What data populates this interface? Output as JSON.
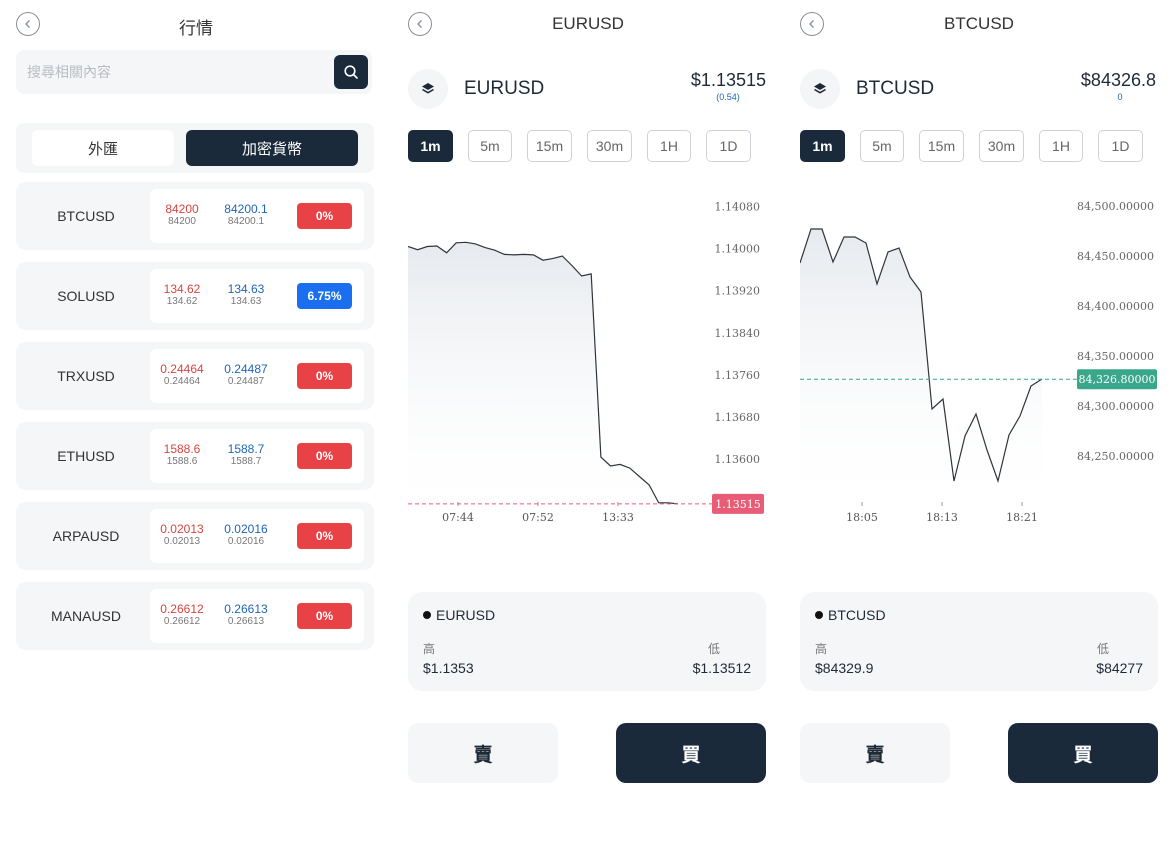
{
  "list": {
    "title": "行情",
    "search_placeholder": "搜尋相關內容",
    "tabs": [
      "外匯",
      "加密貨幣"
    ],
    "rows": [
      {
        "symbol": "BTCUSD",
        "bid": "84200",
        "bid_sub": "84200",
        "ask": "84200.1",
        "ask_sub": "84200.1",
        "change": "0%",
        "dir": "down"
      },
      {
        "symbol": "SOLUSD",
        "bid": "134.62",
        "bid_sub": "134.62",
        "ask": "134.63",
        "ask_sub": "134.63",
        "change": "6.75%",
        "dir": "up"
      },
      {
        "symbol": "TRXUSD",
        "bid": "0.24464",
        "bid_sub": "0.24464",
        "ask": "0.24487",
        "ask_sub": "0.24487",
        "change": "0%",
        "dir": "down"
      },
      {
        "symbol": "ETHUSD",
        "bid": "1588.6",
        "bid_sub": "1588.6",
        "ask": "1588.7",
        "ask_sub": "1588.7",
        "change": "0%",
        "dir": "down"
      },
      {
        "symbol": "ARPAUSD",
        "bid": "0.02013",
        "bid_sub": "0.02013",
        "ask": "0.02016",
        "ask_sub": "0.02016",
        "change": "0%",
        "dir": "down"
      },
      {
        "symbol": "MANAUSD",
        "bid": "0.26612",
        "bid_sub": "0.26612",
        "ask": "0.26613",
        "ask_sub": "0.26613",
        "change": "0%",
        "dir": "down"
      }
    ]
  },
  "timeframes": [
    "1m",
    "5m",
    "15m",
    "30m",
    "1H",
    "1D"
  ],
  "eur": {
    "title": "EURUSD",
    "symbol": "EURUSD",
    "price": "$1.13515",
    "change": "(0.54)",
    "active_tf": "1m",
    "info_name": "EURUSD",
    "high_label": "高",
    "high_value": "$1.1353",
    "low_label": "低",
    "low_value": "$1.13512",
    "sell_label": "賣",
    "buy_label": "買"
  },
  "btc": {
    "title": "BTCUSD",
    "symbol": "BTCUSD",
    "price": "$84326.8",
    "change": "0",
    "active_tf": "1m",
    "info_name": "BTCUSD",
    "high_label": "高",
    "high_value": "$84329.9",
    "low_label": "低",
    "low_value": "$84277",
    "sell_label": "賣",
    "buy_label": "買"
  },
  "chart_data": [
    {
      "type": "area",
      "series": [
        {
          "values": [
            1.14004,
            1.13998,
            1.14004,
            1.14005,
            1.13992,
            1.14011,
            1.14012,
            1.14009,
            1.14002,
            1.13997,
            1.13989,
            1.13988,
            1.13989,
            1.13988,
            1.13978,
            1.13981,
            1.13986,
            1.13968,
            1.13948,
            1.13952,
            1.13604,
            1.13587,
            1.1359,
            1.13583,
            1.13567,
            1.13551,
            1.13517,
            1.13517,
            1.13515
          ]
        }
      ],
      "x_tick_labels": [
        "07:44",
        "07:52",
        "13:33"
      ],
      "y_tick_labels": [
        "1.14080",
        "1.14000",
        "1.13920",
        "1.13840",
        "1.13760",
        "1.13680",
        "1.13600"
      ],
      "ylim": [
        1.1353,
        1.141
      ],
      "current_value": "1.13515",
      "current_line_color": "#e85c78",
      "line_color": "#2f353c"
    },
    {
      "type": "area",
      "series": [
        {
          "values": [
            84443,
            84477,
            84477,
            84444,
            84469,
            84469,
            84463,
            84422,
            84454,
            84458,
            84429,
            84414,
            84297,
            84307,
            84225,
            84270,
            84292,
            84256,
            84225,
            84271,
            84290,
            84320,
            84327
          ]
        }
      ],
      "x_tick_labels": [
        "18:05",
        "18:13",
        "18:21"
      ],
      "y_tick_labels": [
        "84,500.00000",
        "84,450.00000",
        "84,400.00000",
        "84,350.00000",
        "84,300.00000",
        "84,250.00000"
      ],
      "ylim": [
        84210,
        84510
      ],
      "current_value": "84,326.80000",
      "current_line_color": "#3aa68a",
      "line_color": "#2f353c"
    }
  ]
}
